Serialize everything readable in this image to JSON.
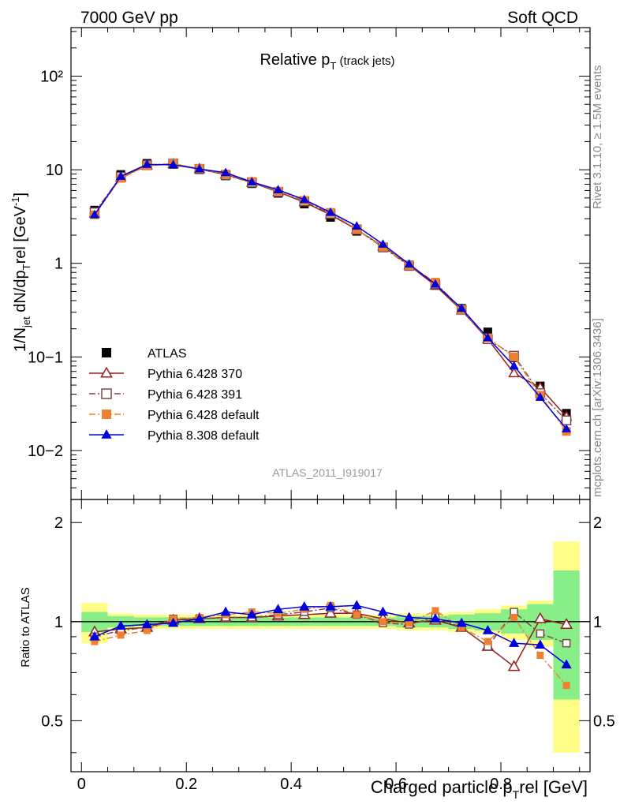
{
  "header": {
    "left": "7000 GeV pp",
    "right": "Soft QCD"
  },
  "side": {
    "rivet": "Rivet 3.1.10, ≥ 1.5M events",
    "mcplots": "mcplots.cern.ch [arXiv:1306.3436]"
  },
  "main": {
    "title_main": "Relative p",
    "title_sub": "T",
    "title_rest": " (track jets)",
    "ylabel_parts": [
      "1/N",
      "jet",
      " dN/dp",
      "T",
      "rel [GeV",
      "-1",
      "]"
    ],
    "watermark": "ATLAS_2011_I919017",
    "ytick_labels": [
      "10−2",
      "10−1",
      "1",
      "10",
      "10²"
    ]
  },
  "ratio": {
    "ylabel": "Ratio to ATLAS",
    "ytick_labels": [
      "0.5",
      "1",
      "2"
    ]
  },
  "xaxis": {
    "label_parts": [
      "Charged particle p",
      "T",
      "rel [GeV]"
    ],
    "tick_labels": [
      "0",
      "0.2",
      "0.4",
      "0.6",
      "0.8"
    ]
  },
  "legend": [
    {
      "label": "ATLAS",
      "color": "#000000",
      "marker": "square-filled",
      "line": "none"
    },
    {
      "label": "Pythia 6.428 370",
      "color": "#9a1c1c",
      "marker": "triangle-open",
      "line": "solid"
    },
    {
      "label": "Pythia 6.428 391",
      "color": "#7a4a4a",
      "marker": "square-open",
      "line": "dashdot"
    },
    {
      "label": "Pythia 6.428 default",
      "color": "#f08030",
      "marker": "square-filled",
      "line": "dashdot"
    },
    {
      "label": "Pythia 8.308 default",
      "color": "#0000dd",
      "marker": "triangle-filled",
      "line": "solid"
    }
  ],
  "chart_data": {
    "type": "line",
    "x": [
      0.025,
      0.075,
      0.125,
      0.175,
      0.225,
      0.275,
      0.325,
      0.375,
      0.425,
      0.475,
      0.525,
      0.575,
      0.625,
      0.675,
      0.725,
      0.775,
      0.825,
      0.875,
      0.925
    ],
    "xlim": [
      -0.02,
      0.97
    ],
    "ylim_main": [
      0.003,
      330
    ],
    "yscale_main": "log",
    "ylim_ratio": [
      0.35,
      2.35
    ],
    "yscale_ratio": "log",
    "series": [
      {
        "name": "ATLAS",
        "values": [
          3.7,
          8.9,
          11.7,
          11.4,
          10.0,
          8.6,
          7.1,
          5.6,
          4.3,
          3.1,
          2.2,
          1.5,
          0.96,
          0.58,
          0.33,
          0.185,
          0.098,
          0.049,
          0.025
        ]
      },
      {
        "name": "Pythia 6.428 370",
        "values": [
          3.4,
          8.3,
          11.1,
          11.5,
          10.2,
          8.9,
          7.3,
          5.8,
          4.5,
          3.3,
          2.3,
          1.52,
          0.95,
          0.58,
          0.315,
          0.155,
          0.067,
          0.047,
          0.023
        ]
      },
      {
        "name": "Pythia 6.428 391",
        "values": [
          3.5,
          8.4,
          11.2,
          11.6,
          10.2,
          8.8,
          7.3,
          5.8,
          4.6,
          3.4,
          2.3,
          1.48,
          0.94,
          0.6,
          0.32,
          0.155,
          0.103,
          0.041,
          0.021
        ]
      },
      {
        "name": "Pythia 6.428 default",
        "values": [
          3.3,
          8.1,
          11.0,
          11.6,
          10.3,
          9.0,
          7.5,
          5.9,
          4.7,
          3.5,
          2.3,
          1.5,
          0.95,
          0.63,
          0.32,
          0.16,
          0.1,
          0.039,
          0.016
        ]
      },
      {
        "name": "Pythia 8.308 default",
        "values": [
          3.3,
          8.5,
          11.4,
          11.3,
          10.2,
          9.3,
          7.4,
          6.1,
          4.8,
          3.5,
          2.5,
          1.6,
          0.98,
          0.6,
          0.33,
          0.16,
          0.08,
          0.037,
          0.017
        ]
      }
    ],
    "ratio_series": [
      {
        "name": "Pythia 6.428 370",
        "values": [
          0.93,
          0.95,
          0.96,
          1.01,
          1.02,
          1.03,
          1.03,
          1.04,
          1.05,
          1.06,
          1.06,
          1.02,
          0.99,
          1.01,
          0.96,
          0.84,
          0.73,
          1.02,
          0.98
        ]
      },
      {
        "name": "Pythia 6.428 391",
        "values": [
          0.9,
          0.94,
          0.96,
          1.02,
          1.02,
          1.03,
          1.03,
          1.05,
          1.07,
          1.1,
          1.05,
          0.99,
          0.98,
          1.03,
          0.96,
          0.84,
          1.07,
          0.92,
          0.86
        ]
      },
      {
        "name": "Pythia 6.428 default",
        "values": [
          0.87,
          0.91,
          0.94,
          1.02,
          1.03,
          1.05,
          1.07,
          1.06,
          1.09,
          1.12,
          1.05,
          1.0,
          0.99,
          1.08,
          0.96,
          0.87,
          1.03,
          0.79,
          0.64
        ]
      },
      {
        "name": "Pythia 8.308 default",
        "values": [
          0.9,
          0.97,
          0.98,
          0.99,
          1.02,
          1.07,
          1.05,
          1.09,
          1.11,
          1.11,
          1.12,
          1.07,
          1.03,
          1.02,
          0.99,
          0.94,
          0.86,
          0.85,
          0.74
        ]
      }
    ],
    "ratio_band_inner": [
      [
        0.93,
        1.07
      ],
      [
        0.96,
        1.04
      ],
      [
        0.97,
        1.03
      ],
      [
        0.97,
        1.03
      ],
      [
        0.97,
        1.03
      ],
      [
        0.97,
        1.03
      ],
      [
        0.97,
        1.03
      ],
      [
        0.97,
        1.03
      ],
      [
        0.97,
        1.03
      ],
      [
        0.97,
        1.03
      ],
      [
        0.97,
        1.03
      ],
      [
        0.97,
        1.03
      ],
      [
        0.96,
        1.04
      ],
      [
        0.96,
        1.04
      ],
      [
        0.95,
        1.05
      ],
      [
        0.94,
        1.06
      ],
      [
        0.92,
        1.09
      ],
      [
        0.88,
        1.13
      ],
      [
        0.58,
        1.43
      ]
    ],
    "ratio_band_outer": [
      [
        0.86,
        1.14
      ],
      [
        0.94,
        1.06
      ],
      [
        0.95,
        1.05
      ],
      [
        0.95,
        1.05
      ],
      [
        0.95,
        1.05
      ],
      [
        0.95,
        1.05
      ],
      [
        0.95,
        1.05
      ],
      [
        0.95,
        1.05
      ],
      [
        0.95,
        1.05
      ],
      [
        0.95,
        1.05
      ],
      [
        0.95,
        1.05
      ],
      [
        0.95,
        1.05
      ],
      [
        0.94,
        1.06
      ],
      [
        0.94,
        1.06
      ],
      [
        0.93,
        1.07
      ],
      [
        0.92,
        1.09
      ],
      [
        0.88,
        1.12
      ],
      [
        0.84,
        1.16
      ],
      [
        0.4,
        1.75
      ]
    ],
    "grid": false,
    "legend_position": "bottom-left"
  }
}
